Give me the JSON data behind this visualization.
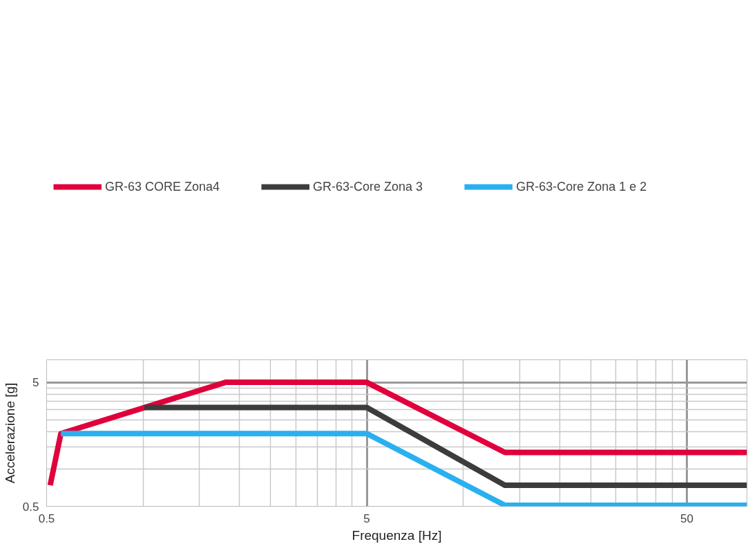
{
  "chart_data": {
    "type": "line",
    "xlabel": "Frequenza [Hz]",
    "ylabel": "Accelerazione [g]",
    "log": "xy",
    "grid": true,
    "legend": "top left",
    "marker": "none",
    "line_style": "solid",
    "xlim": [
      0.5,
      77
    ],
    "ylim": [
      0.5,
      7.6
    ],
    "xticks": [
      0.5,
      5,
      50
    ],
    "yticks": [
      0.5,
      5
    ],
    "series": [
      {
        "name": "GR-63 CORE Zona4",
        "color": "#e0003c",
        "x": [
          0.513,
          0.554,
          1.81,
          5,
          13.5,
          77
        ],
        "values": [
          0.74,
          1.93,
          5,
          5,
          1.36,
          1.36
        ]
      },
      {
        "name": "GR-63-Core Zona 3",
        "color": "#3c3c3c",
        "x": [
          1.01,
          5,
          13.5,
          77
        ],
        "values": [
          3.13,
          3.13,
          0.74,
          0.74
        ]
      },
      {
        "name": "GR-63-Core Zona 1 e 2",
        "color": "#29b0ef",
        "x": [
          0.554,
          5,
          13.5,
          77
        ],
        "values": [
          1.93,
          1.93,
          0.51,
          0.51
        ]
      }
    ]
  }
}
